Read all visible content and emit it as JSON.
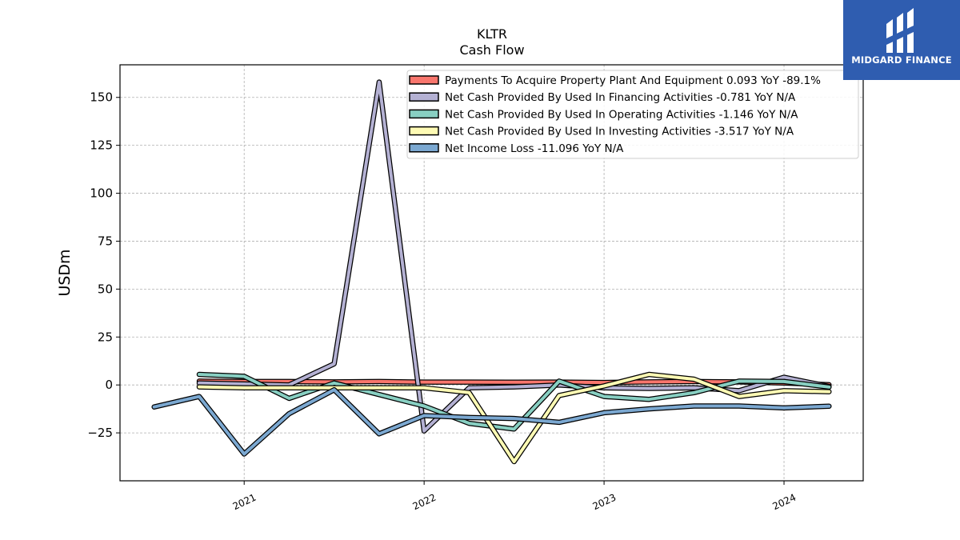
{
  "chart_data": {
    "type": "line",
    "title": "KLTR",
    "subtitle": "Cash Flow",
    "ylabel": "USDm",
    "xlabel": "",
    "ylim": [
      -50,
      167
    ],
    "xlim": [
      2020.31,
      2024.44
    ],
    "yticks": [
      -25,
      0,
      25,
      50,
      75,
      100,
      125,
      150
    ],
    "xticks": [
      {
        "value": 2021,
        "label": "2021"
      },
      {
        "value": 2022,
        "label": "2022"
      },
      {
        "value": 2023,
        "label": "2023"
      },
      {
        "value": 2024,
        "label": "2024"
      }
    ],
    "grid": true,
    "legend_position": "top-right",
    "x": [
      2020.5,
      2020.75,
      2021.0,
      2021.25,
      2021.5,
      2021.75,
      2022.0,
      2022.25,
      2022.5,
      2022.75,
      2023.0,
      2023.25,
      2023.5,
      2023.75,
      2024.0,
      2024.25
    ],
    "series": [
      {
        "name": "Payments To Acquire Property Plant And Equipment  0.093 YoY -89.1%",
        "color": "#f8766d",
        "values": [
          null,
          2.0,
          1.8,
          1.8,
          1.6,
          1.8,
          1.5,
          1.5,
          1.4,
          1.5,
          1.3,
          1.6,
          1.8,
          1.6,
          1.0,
          0.1
        ]
      },
      {
        "name": "Net Cash Provided By Used In Financing Activities  -0.781 YoY N/A",
        "color": "#b4b1d3",
        "values": [
          null,
          1.0,
          0.5,
          0.0,
          11.0,
          158.0,
          -24.0,
          -1.5,
          -1.0,
          0.0,
          -1.5,
          -1.8,
          -1.5,
          -3.0,
          4.0,
          -0.8
        ]
      },
      {
        "name": "Net Cash Provided By Used In Operating Activities  -1.146 YoY N/A",
        "color": "#88cfc2",
        "values": [
          null,
          5.5,
          4.5,
          -7.0,
          1.0,
          -5.0,
          -11.0,
          -20.0,
          -23.0,
          2.0,
          -6.0,
          -7.5,
          -4.0,
          2.0,
          1.8,
          -1.1
        ]
      },
      {
        "name": "Net Cash Provided By Used In Investing Activities  -3.517 YoY N/A",
        "color": "#fdfab4",
        "values": [
          null,
          -1.0,
          -1.5,
          -1.5,
          -1.5,
          -1.5,
          -1.5,
          -4.0,
          -40.0,
          -5.5,
          -0.5,
          5.5,
          3.0,
          -6.0,
          -3.0,
          -3.5
        ]
      },
      {
        "name": "Net Income Loss  -11.096 YoY N/A",
        "color": "#7ba8d1",
        "values": [
          -11.5,
          -6.0,
          -36.0,
          -15.0,
          -2.5,
          -25.5,
          -16.0,
          -17.0,
          -17.5,
          -19.5,
          -14.5,
          -12.5,
          -11.0,
          -11.0,
          -12.0,
          -11.1
        ]
      }
    ]
  },
  "logo": {
    "text": "MIDGARD FINANCE"
  }
}
